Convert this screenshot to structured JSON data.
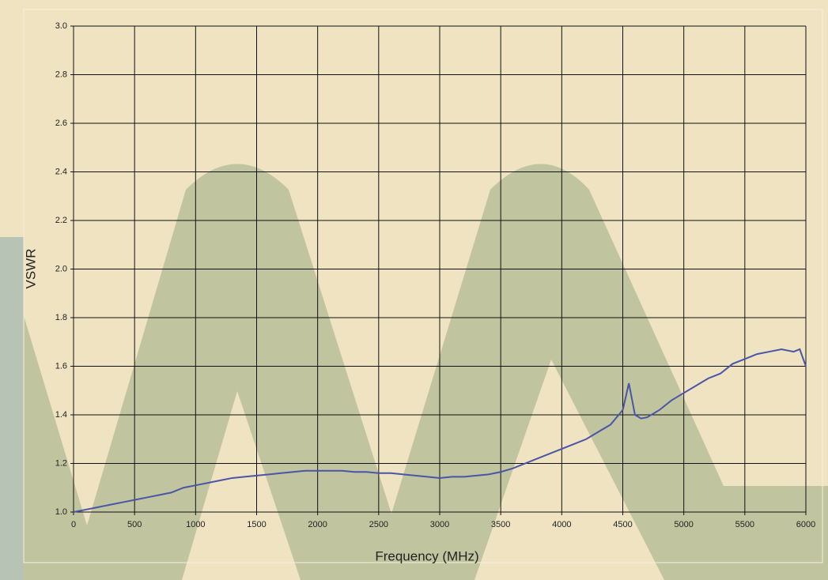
{
  "chart_data": {
    "type": "line",
    "xlabel": "Frequency (MHz)",
    "ylabel": "VSWR",
    "x": [
      0,
      100,
      200,
      300,
      400,
      500,
      600,
      700,
      800,
      900,
      1000,
      1100,
      1200,
      1300,
      1400,
      1500,
      1600,
      1700,
      1800,
      1900,
      2000,
      2100,
      2200,
      2300,
      2400,
      2500,
      2600,
      2700,
      2800,
      2900,
      3000,
      3100,
      3200,
      3300,
      3400,
      3500,
      3600,
      3700,
      3800,
      3900,
      4000,
      4100,
      4200,
      4300,
      4400,
      4500,
      4550,
      4600,
      4650,
      4700,
      4800,
      4900,
      5000,
      5100,
      5200,
      5300,
      5400,
      5500,
      5600,
      5700,
      5800,
      5900,
      5950,
      6000
    ],
    "values": [
      1.0,
      1.01,
      1.02,
      1.03,
      1.04,
      1.05,
      1.06,
      1.07,
      1.08,
      1.1,
      1.11,
      1.12,
      1.13,
      1.14,
      1.145,
      1.15,
      1.155,
      1.16,
      1.165,
      1.17,
      1.17,
      1.17,
      1.17,
      1.165,
      1.165,
      1.16,
      1.16,
      1.155,
      1.15,
      1.145,
      1.14,
      1.145,
      1.145,
      1.15,
      1.155,
      1.165,
      1.18,
      1.2,
      1.22,
      1.24,
      1.26,
      1.28,
      1.3,
      1.33,
      1.36,
      1.42,
      1.53,
      1.4,
      1.385,
      1.39,
      1.42,
      1.46,
      1.49,
      1.52,
      1.55,
      1.57,
      1.61,
      1.63,
      1.65,
      1.66,
      1.67,
      1.66,
      1.67,
      1.6
    ],
    "color": "#4a55a8",
    "xlim": [
      0,
      6000
    ],
    "xticks": [
      0,
      500,
      1000,
      1500,
      2000,
      2500,
      3000,
      3500,
      4000,
      4500,
      5000,
      5500,
      6000
    ],
    "ylim": [
      1,
      3
    ],
    "yticks": [
      {
        "value": 1,
        "label": "1.0"
      },
      1.2,
      1.4,
      1.6,
      1.8,
      {
        "value": 2,
        "label": "2.0"
      },
      2.2,
      2.4,
      2.6,
      2.8,
      {
        "value": 3,
        "label": "3.0"
      }
    ],
    "grid": true
  }
}
